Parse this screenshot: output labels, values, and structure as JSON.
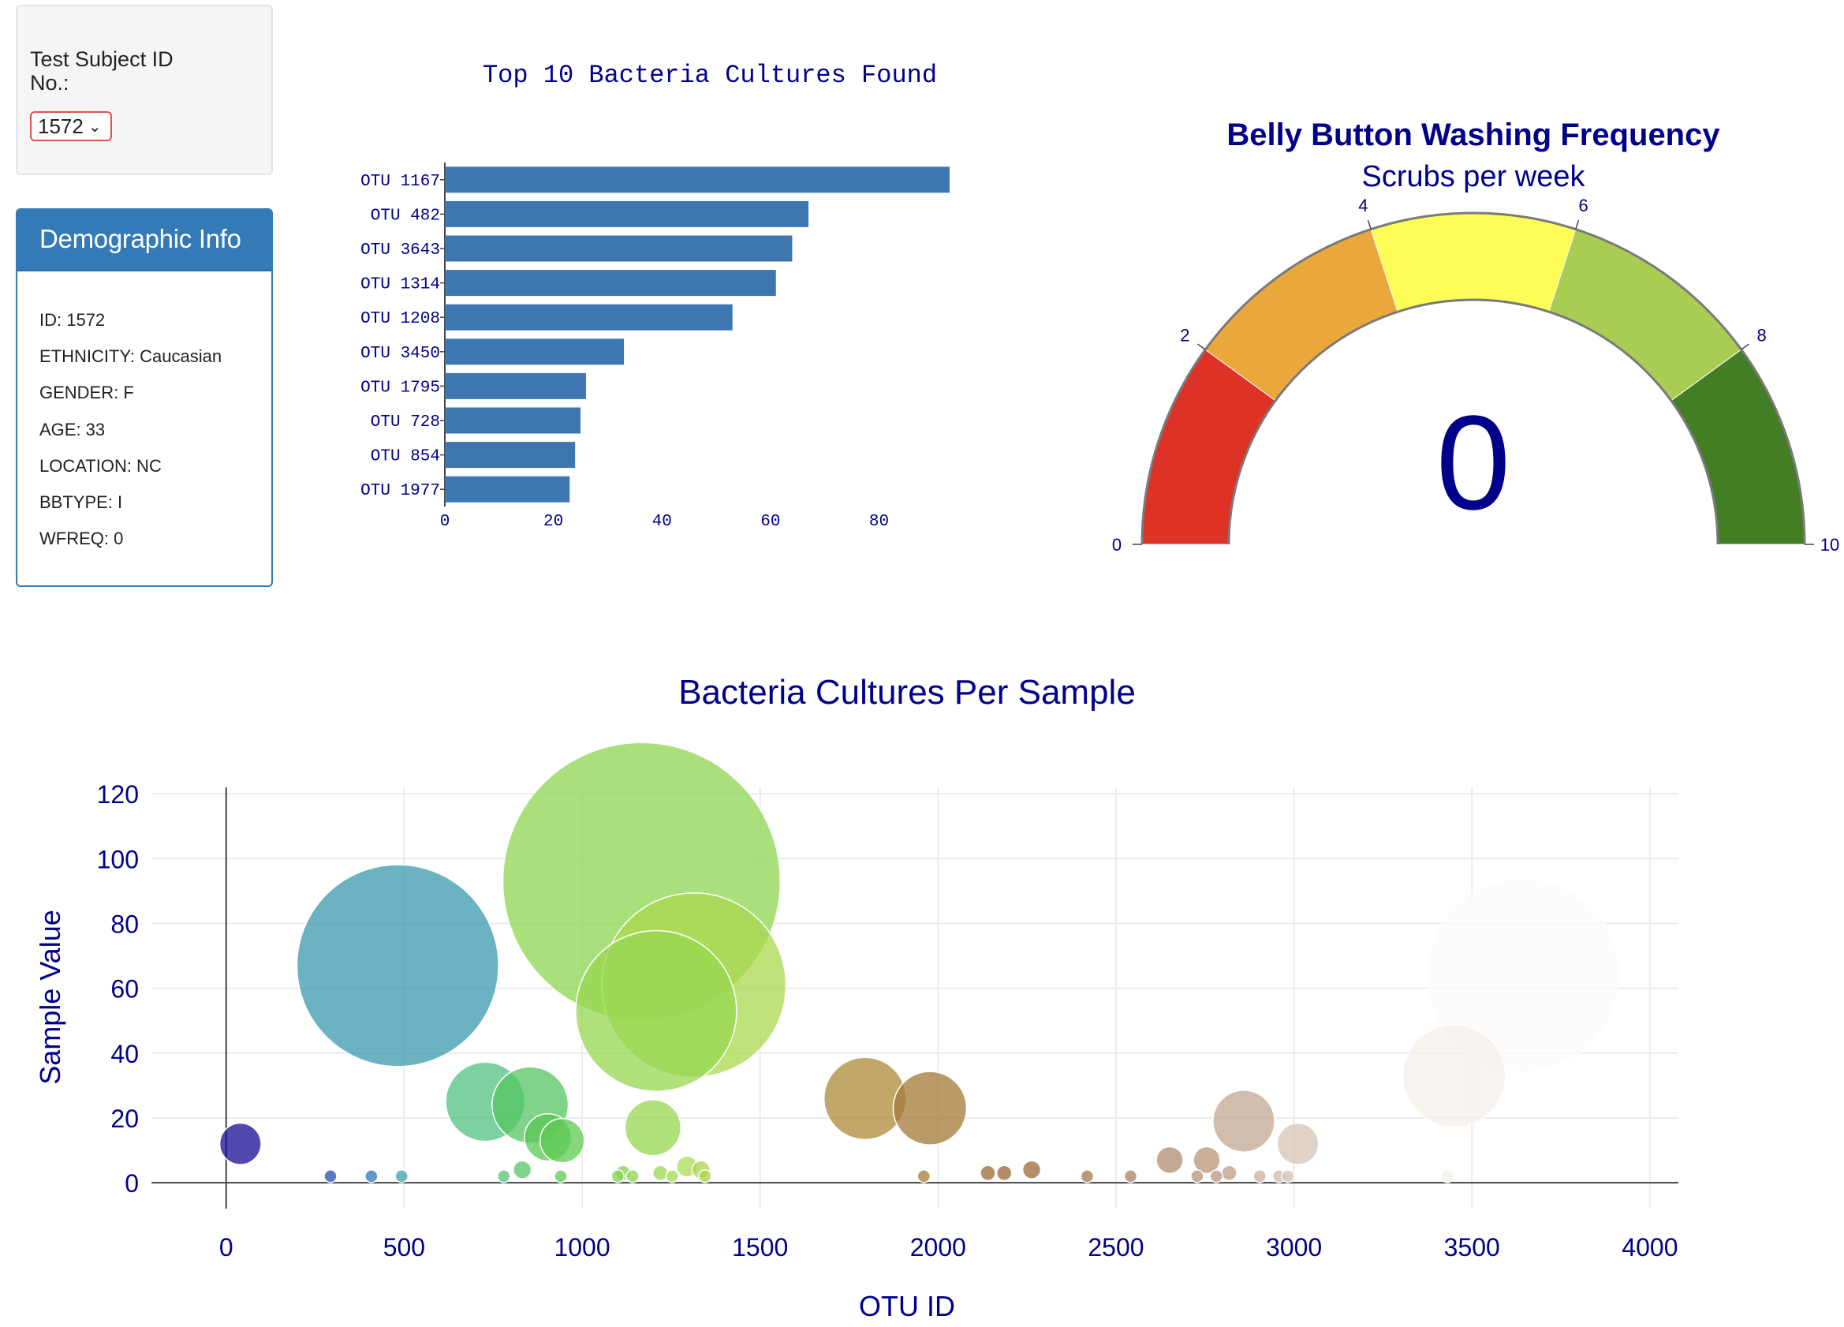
{
  "selector": {
    "label": "Test Subject ID No.:",
    "value": "1572"
  },
  "demographics": {
    "title": "Demographic Info",
    "lines": [
      "ID: 1572",
      "ETHNICITY: Caucasian",
      "GENDER: F",
      "AGE: 33",
      "LOCATION: NC",
      "BBTYPE: I",
      "WFREQ: 0"
    ]
  },
  "chart_data": [
    {
      "type": "bar",
      "orientation": "horizontal",
      "title": "Top 10 Bacteria Cultures Found",
      "categories": [
        "OTU 1167",
        "OTU 482",
        "OTU 3643",
        "OTU 1314",
        "OTU 1208",
        "OTU 3450",
        "OTU 1795",
        "OTU 728",
        "OTU 854",
        "OTU 1977"
      ],
      "values": [
        93,
        67,
        64,
        61,
        53,
        33,
        26,
        25,
        24,
        23
      ],
      "xlim": [
        0,
        93
      ],
      "xticks": [
        0,
        20,
        40,
        60,
        80
      ],
      "color": "#3d76b0"
    },
    {
      "type": "gauge",
      "title": "Belly Button Washing Frequency",
      "subtitle": "Scrubs per week",
      "value": 0,
      "range": [
        0,
        10
      ],
      "ticks": [
        0,
        2,
        4,
        6,
        8,
        10
      ],
      "bands": [
        {
          "from": 0,
          "to": 2,
          "color": "#de3226"
        },
        {
          "from": 2,
          "to": 4,
          "color": "#eaa73c"
        },
        {
          "from": 4,
          "to": 6,
          "color": "#fdfd55"
        },
        {
          "from": 6,
          "to": 8,
          "color": "#a9cc52"
        },
        {
          "from": 8,
          "to": 10,
          "color": "#437d24"
        }
      ],
      "text_color": "#00008b"
    },
    {
      "type": "scatter",
      "title": "Bacteria Cultures Per Sample",
      "xlabel": "OTU ID",
      "ylabel": "Sample Value",
      "xlim": [
        -210,
        4080
      ],
      "ylim": [
        -8,
        122
      ],
      "xticks": [
        0,
        500,
        1000,
        1500,
        2000,
        2500,
        3000,
        3500,
        4000
      ],
      "yticks": [
        0,
        20,
        40,
        60,
        80,
        100,
        120
      ],
      "grid": true,
      "colorscale": "Earth",
      "points": [
        {
          "x": 40,
          "y": 12
        },
        {
          "x": 293,
          "y": 2
        },
        {
          "x": 408,
          "y": 2
        },
        {
          "x": 482,
          "y": 67
        },
        {
          "x": 493,
          "y": 2
        },
        {
          "x": 728,
          "y": 25
        },
        {
          "x": 780,
          "y": 2
        },
        {
          "x": 832,
          "y": 4
        },
        {
          "x": 854,
          "y": 24
        },
        {
          "x": 904,
          "y": 14
        },
        {
          "x": 940,
          "y": 2
        },
        {
          "x": 944,
          "y": 13
        },
        {
          "x": 1100,
          "y": 2
        },
        {
          "x": 1115,
          "y": 3
        },
        {
          "x": 1142,
          "y": 2
        },
        {
          "x": 1167,
          "y": 93
        },
        {
          "x": 1199,
          "y": 17
        },
        {
          "x": 1208,
          "y": 53
        },
        {
          "x": 1220,
          "y": 3
        },
        {
          "x": 1253,
          "y": 2
        },
        {
          "x": 1314,
          "y": 61
        },
        {
          "x": 1295,
          "y": 5
        },
        {
          "x": 1334,
          "y": 4
        },
        {
          "x": 1345,
          "y": 2
        },
        {
          "x": 1795,
          "y": 26
        },
        {
          "x": 1960,
          "y": 2
        },
        {
          "x": 1977,
          "y": 23
        },
        {
          "x": 2140,
          "y": 3
        },
        {
          "x": 2186,
          "y": 3
        },
        {
          "x": 2263,
          "y": 4
        },
        {
          "x": 2419,
          "y": 2
        },
        {
          "x": 2541,
          "y": 2
        },
        {
          "x": 2651,
          "y": 7
        },
        {
          "x": 2728,
          "y": 2
        },
        {
          "x": 2755,
          "y": 7
        },
        {
          "x": 2782,
          "y": 2
        },
        {
          "x": 2818,
          "y": 3
        },
        {
          "x": 2859,
          "y": 19
        },
        {
          "x": 2904,
          "y": 2
        },
        {
          "x": 2958,
          "y": 2
        },
        {
          "x": 2983,
          "y": 2
        },
        {
          "x": 3011,
          "y": 12
        },
        {
          "x": 3431,
          "y": 2
        },
        {
          "x": 3450,
          "y": 33
        },
        {
          "x": 3643,
          "y": 64
        }
      ]
    }
  ]
}
